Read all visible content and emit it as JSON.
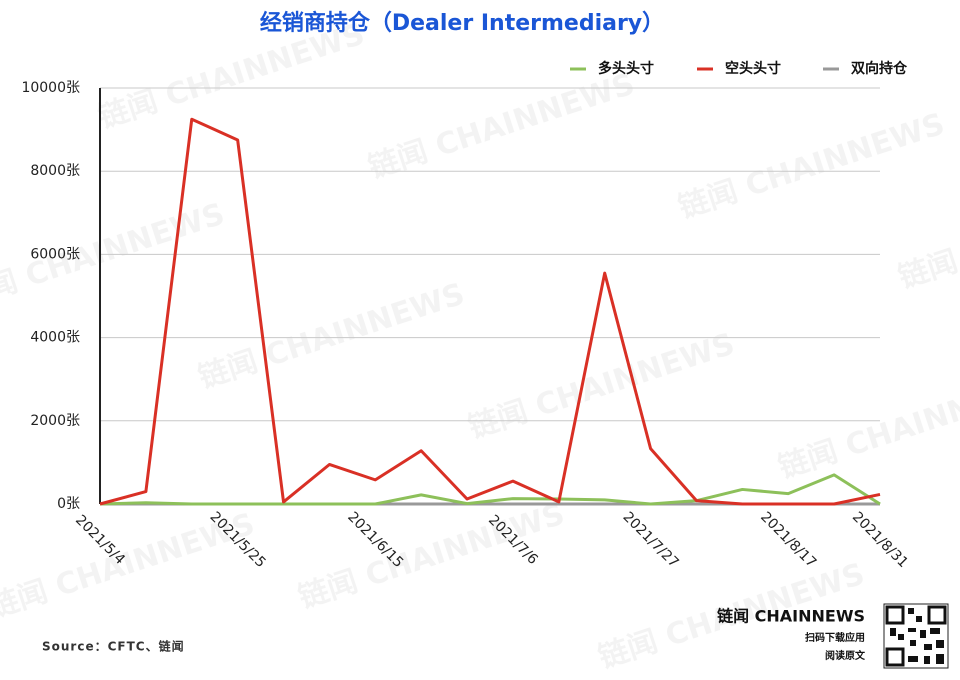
{
  "chart_data": {
    "type": "line",
    "title": "经销商持仓（Dealer Intermediary）",
    "categories": [
      "2021/5/4",
      null,
      null,
      "2021/5/25",
      null,
      null,
      "2021/6/15",
      null,
      null,
      "2021/7/6",
      null,
      null,
      "2021/7/27",
      null,
      null,
      "2021/8/17",
      null,
      "2021/8/31"
    ],
    "series": [
      {
        "name": "多头头寸",
        "color": "#8dc05a",
        "values": [
          0,
          30,
          0,
          0,
          0,
          0,
          0,
          220,
          10,
          130,
          120,
          100,
          0,
          80,
          350,
          250,
          700,
          0
        ]
      },
      {
        "name": "空头头寸",
        "color": "#d93025",
        "values": [
          0,
          300,
          9250,
          8750,
          50,
          950,
          580,
          1280,
          120,
          550,
          50,
          5550,
          1330,
          80,
          0,
          0,
          0,
          230
        ]
      },
      {
        "name": "双向持仓",
        "color": "#999999",
        "values": [
          0,
          0,
          0,
          0,
          0,
          0,
          0,
          0,
          0,
          0,
          0,
          0,
          0,
          0,
          0,
          0,
          0,
          0
        ]
      }
    ],
    "ylim": [
      0,
      10000
    ],
    "yticks": [
      {
        "value": 0,
        "label": "0张"
      },
      {
        "value": 2000,
        "label": "2000张"
      },
      {
        "value": 4000,
        "label": "4000张"
      },
      {
        "value": 6000,
        "label": "6000张"
      },
      {
        "value": 8000,
        "label": "8000张"
      },
      {
        "value": 10000,
        "label": "10000张"
      }
    ],
    "grid": true,
    "legend": "top-right",
    "source": "Source：CFTC、链闻",
    "watermark": "链闻 CHAINNEWS",
    "brand": "链闻 CHAINNEWS",
    "brand_line1": "扫码下载应用",
    "brand_line2": "阅读原文"
  }
}
